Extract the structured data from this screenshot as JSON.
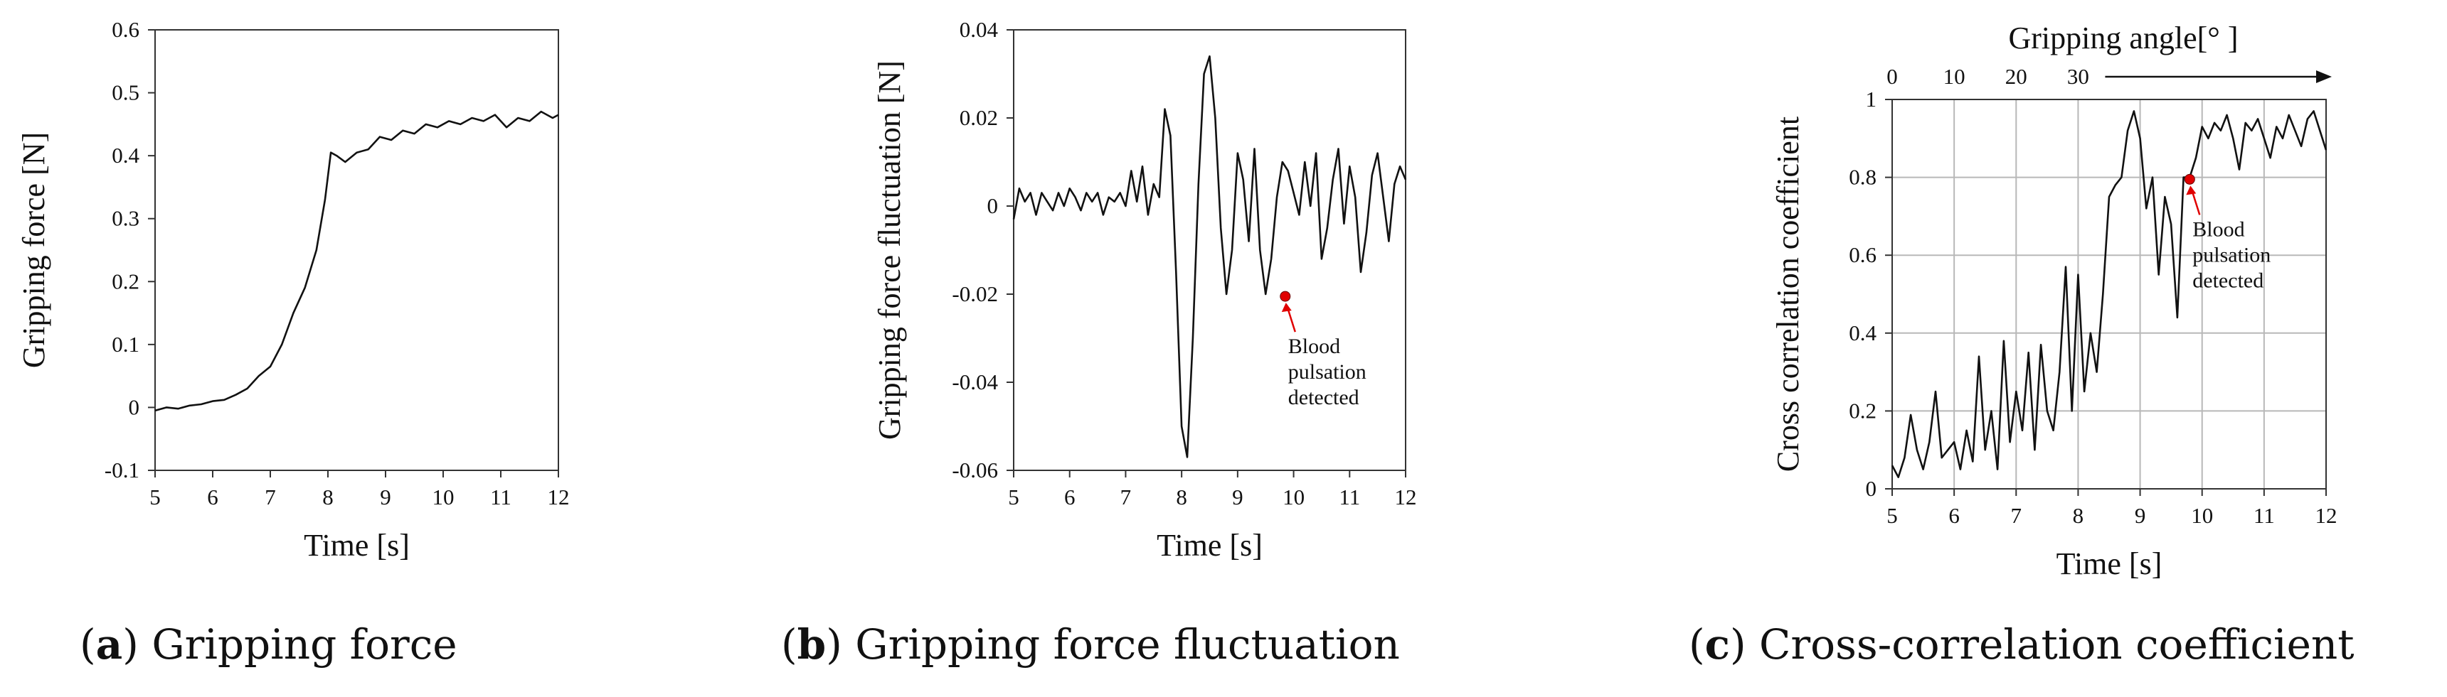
{
  "chart_data": [
    {
      "type": "line",
      "panel_letter": "a",
      "caption": "Gripping force",
      "xlabel": "Time [s]",
      "ylabel": "Gripping force [N]",
      "xlim": [
        5,
        12
      ],
      "ylim": [
        -0.1,
        0.6
      ],
      "xticks": [
        "5",
        "6",
        "7",
        "8",
        "9",
        "10",
        "11",
        "12"
      ],
      "yticks": [
        "-0.1",
        "0",
        "0.1",
        "0.2",
        "0.3",
        "0.4",
        "0.5",
        "0.6"
      ],
      "grid": false,
      "series": [
        {
          "x": [
            5.0,
            5.2,
            5.4,
            5.6,
            5.8,
            6.0,
            6.2,
            6.4,
            6.6,
            6.8,
            7.0,
            7.2,
            7.4,
            7.6,
            7.8,
            7.95,
            8.05,
            8.15,
            8.3,
            8.5,
            8.7,
            8.9,
            9.1,
            9.3,
            9.5,
            9.7,
            9.9,
            10.1,
            10.3,
            10.5,
            10.7,
            10.9,
            11.1,
            11.3,
            11.5,
            11.7,
            11.9,
            12.0
          ],
          "y": [
            -0.005,
            0.0,
            -0.002,
            0.003,
            0.005,
            0.01,
            0.012,
            0.02,
            0.03,
            0.05,
            0.065,
            0.1,
            0.15,
            0.19,
            0.25,
            0.33,
            0.405,
            0.4,
            0.39,
            0.405,
            0.41,
            0.43,
            0.425,
            0.44,
            0.435,
            0.45,
            0.445,
            0.455,
            0.45,
            0.46,
            0.455,
            0.465,
            0.445,
            0.46,
            0.455,
            0.47,
            0.46,
            0.465
          ]
        }
      ]
    },
    {
      "type": "line",
      "panel_letter": "b",
      "caption": "Gripping force fluctuation",
      "xlabel": "Time [s]",
      "ylabel": "Gripping force fluctuation [N]",
      "xlim": [
        5,
        12
      ],
      "ylim": [
        -0.06,
        0.04
      ],
      "xticks": [
        "5",
        "6",
        "7",
        "8",
        "9",
        "10",
        "11",
        "12"
      ],
      "yticks": [
        "-0.06",
        "-0.04",
        "-0.02",
        "0",
        "0.02",
        "0.04"
      ],
      "grid": false,
      "series": [
        {
          "x": [
            5.0,
            5.1,
            5.2,
            5.3,
            5.4,
            5.5,
            5.6,
            5.7,
            5.8,
            5.9,
            6.0,
            6.1,
            6.2,
            6.3,
            6.4,
            6.5,
            6.6,
            6.7,
            6.8,
            6.9,
            7.0,
            7.1,
            7.2,
            7.3,
            7.4,
            7.5,
            7.6,
            7.7,
            7.8,
            7.9,
            8.0,
            8.1,
            8.2,
            8.3,
            8.4,
            8.5,
            8.6,
            8.7,
            8.8,
            8.9,
            9.0,
            9.1,
            9.2,
            9.3,
            9.4,
            9.5,
            9.6,
            9.7,
            9.8,
            9.9,
            10.0,
            10.1,
            10.2,
            10.3,
            10.4,
            10.5,
            10.6,
            10.7,
            10.8,
            10.9,
            11.0,
            11.1,
            11.2,
            11.3,
            11.4,
            11.5,
            11.6,
            11.7,
            11.8,
            11.9,
            12.0
          ],
          "y": [
            -0.003,
            0.004,
            0.001,
            0.003,
            -0.002,
            0.003,
            0.001,
            -0.001,
            0.003,
            0.0,
            0.004,
            0.002,
            -0.001,
            0.003,
            0.001,
            0.003,
            -0.002,
            0.002,
            0.001,
            0.003,
            0.0,
            0.008,
            0.001,
            0.009,
            -0.002,
            0.005,
            0.002,
            0.022,
            0.016,
            -0.015,
            -0.05,
            -0.057,
            -0.03,
            0.005,
            0.03,
            0.034,
            0.02,
            -0.005,
            -0.02,
            -0.01,
            0.012,
            0.006,
            -0.008,
            0.013,
            -0.01,
            -0.02,
            -0.012,
            0.002,
            0.01,
            0.008,
            0.003,
            -0.002,
            0.01,
            0.0,
            0.012,
            -0.012,
            -0.005,
            0.006,
            0.013,
            -0.004,
            0.009,
            0.002,
            -0.015,
            -0.006,
            0.007,
            0.012,
            0.002,
            -0.008,
            0.005,
            0.009,
            0.006
          ]
        }
      ],
      "annotation": {
        "x": 9.85,
        "y": -0.0205,
        "lines": [
          "Blood",
          "pulsation",
          "detected"
        ],
        "marker_color": "#e00000"
      }
    },
    {
      "type": "line",
      "panel_letter": "c",
      "caption": "Cross-correlation coefficient",
      "xlabel": "Time [s]",
      "ylabel": "Cross correlation coefficient",
      "top_label": "Gripping angle[°  ]",
      "top_ticks": [
        "0",
        "10",
        "20",
        "30"
      ],
      "xlim": [
        5,
        12
      ],
      "ylim": [
        0,
        1
      ],
      "xticks": [
        "5",
        "6",
        "7",
        "8",
        "9",
        "10",
        "11",
        "12"
      ],
      "yticks": [
        "0",
        "0.2",
        "0.4",
        "0.6",
        "0.8",
        "1"
      ],
      "grid": true,
      "series": [
        {
          "x": [
            5.0,
            5.1,
            5.2,
            5.3,
            5.4,
            5.5,
            5.6,
            5.7,
            5.8,
            5.9,
            6.0,
            6.1,
            6.2,
            6.3,
            6.4,
            6.5,
            6.6,
            6.7,
            6.8,
            6.9,
            7.0,
            7.1,
            7.2,
            7.3,
            7.4,
            7.5,
            7.6,
            7.7,
            7.8,
            7.9,
            8.0,
            8.1,
            8.2,
            8.3,
            8.4,
            8.5,
            8.6,
            8.7,
            8.8,
            8.9,
            9.0,
            9.1,
            9.2,
            9.3,
            9.4,
            9.5,
            9.6,
            9.7,
            9.8,
            9.9,
            10.0,
            10.1,
            10.2,
            10.3,
            10.4,
            10.5,
            10.6,
            10.7,
            10.8,
            10.9,
            11.0,
            11.1,
            11.2,
            11.3,
            11.4,
            11.5,
            11.6,
            11.7,
            11.8,
            11.9,
            12.0
          ],
          "y": [
            0.06,
            0.03,
            0.08,
            0.19,
            0.1,
            0.05,
            0.12,
            0.25,
            0.08,
            0.1,
            0.12,
            0.05,
            0.15,
            0.07,
            0.34,
            0.1,
            0.2,
            0.05,
            0.38,
            0.12,
            0.25,
            0.15,
            0.35,
            0.1,
            0.37,
            0.2,
            0.15,
            0.3,
            0.57,
            0.2,
            0.55,
            0.25,
            0.4,
            0.3,
            0.5,
            0.75,
            0.78,
            0.8,
            0.92,
            0.97,
            0.9,
            0.72,
            0.8,
            0.55,
            0.75,
            0.68,
            0.44,
            0.8,
            0.8,
            0.85,
            0.93,
            0.9,
            0.94,
            0.92,
            0.96,
            0.9,
            0.82,
            0.94,
            0.92,
            0.95,
            0.9,
            0.85,
            0.93,
            0.9,
            0.96,
            0.92,
            0.88,
            0.95,
            0.97,
            0.92,
            0.87
          ]
        }
      ],
      "annotation": {
        "x": 9.8,
        "y": 0.795,
        "lines": [
          "Blood",
          "pulsation",
          "detected"
        ],
        "marker_color": "#e00000"
      }
    }
  ]
}
